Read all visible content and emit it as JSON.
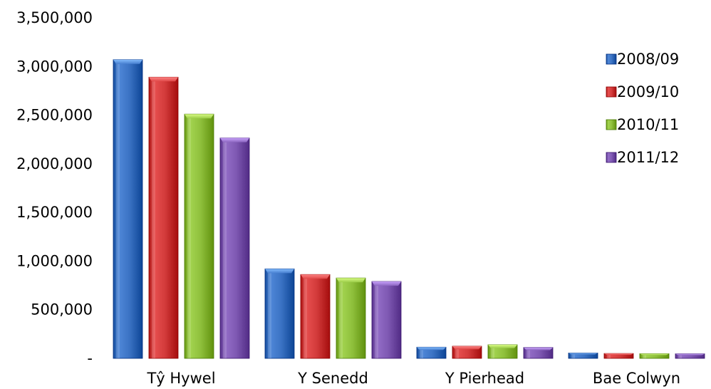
{
  "chart_data": {
    "type": "bar",
    "categories": [
      "Tŷ Hywel",
      "Y Senedd",
      "Y Pierhead",
      "Bae Colwyn"
    ],
    "series": [
      {
        "name": "2008/09",
        "values": [
          3070000,
          920000,
          115000,
          55000
        ],
        "color": "#3b73c4"
      },
      {
        "name": "2009/10",
        "values": [
          2890000,
          862000,
          125000,
          50000
        ],
        "color": "#d33b3b"
      },
      {
        "name": "2010/11",
        "values": [
          2510000,
          826000,
          140000,
          48000
        ],
        "color": "#8fc03c"
      },
      {
        "name": "2011/12",
        "values": [
          2265000,
          790000,
          112000,
          47000
        ],
        "color": "#7f59b3"
      }
    ],
    "ylim": [
      0,
      3500000
    ],
    "yticks": [
      {
        "value": 0,
        "label": "-"
      },
      {
        "value": 500000,
        "label": "500,000"
      },
      {
        "value": 1000000,
        "label": "1,000,000"
      },
      {
        "value": 1500000,
        "label": "1,500,000"
      },
      {
        "value": 2000000,
        "label": "2,000,000"
      },
      {
        "value": 2500000,
        "label": "2,500,000"
      },
      {
        "value": 3000000,
        "label": "3,000,000"
      },
      {
        "value": 3500000,
        "label": "3,500,000"
      }
    ],
    "grid": false,
    "legend_position": "right",
    "title": "",
    "xlabel": "",
    "ylabel": ""
  }
}
